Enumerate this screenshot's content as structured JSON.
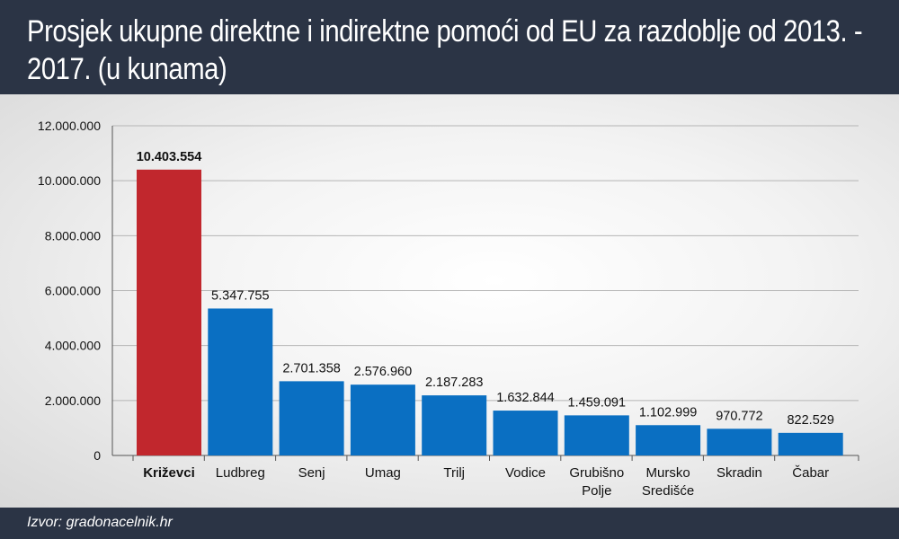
{
  "header": {
    "title": "Prosjek ukupne direktne i indirektne pomoći od EU za razdoblje od 2013. - 2017. (u kunama)"
  },
  "footer": {
    "source": "Izvor: gradonacelnik.hr"
  },
  "colors": {
    "highlight": "#c1272d",
    "bar": "#0a6fc2",
    "grid": "#b5b5b5"
  },
  "chart_data": {
    "type": "bar",
    "title": "Prosjek ukupne direktne i indirektne pomoći od EU za razdoblje od 2013. - 2017. (u kunama)",
    "categories": [
      "Križevci",
      "Ludbreg",
      "Senj",
      "Umag",
      "Trilj",
      "Vodice",
      "Grubišno Polje",
      "Mursko Središće",
      "Skradin",
      "Čabar"
    ],
    "category_lines": [
      [
        "Križevci"
      ],
      [
        "Ludbreg"
      ],
      [
        "Senj"
      ],
      [
        "Umag"
      ],
      [
        "Trilj"
      ],
      [
        "Vodice"
      ],
      [
        "Grubišno",
        "Polje"
      ],
      [
        "Mursko",
        "Središće"
      ],
      [
        "Skradin"
      ],
      [
        "Čabar"
      ]
    ],
    "values": [
      10403554,
      5347755,
      2701358,
      2576960,
      2187283,
      1632844,
      1459091,
      1102999,
      970772,
      822529
    ],
    "value_labels": [
      "10.403.554",
      "5.347.755",
      "2.701.358",
      "2.576.960",
      "2.187.283",
      "1.632.844",
      "1.459.091",
      "1.102.999",
      "970.772",
      "822.529"
    ],
    "highlighted_index": 0,
    "ylim": [
      0,
      12000000
    ],
    "yticks": [
      0,
      2000000,
      4000000,
      6000000,
      8000000,
      10000000,
      12000000
    ],
    "ytick_labels": [
      "0",
      "2.000.000",
      "4.000.000",
      "6.000.000",
      "8.000.000",
      "10.000.000",
      "12.000.000"
    ],
    "grid": true,
    "legend": "none"
  }
}
